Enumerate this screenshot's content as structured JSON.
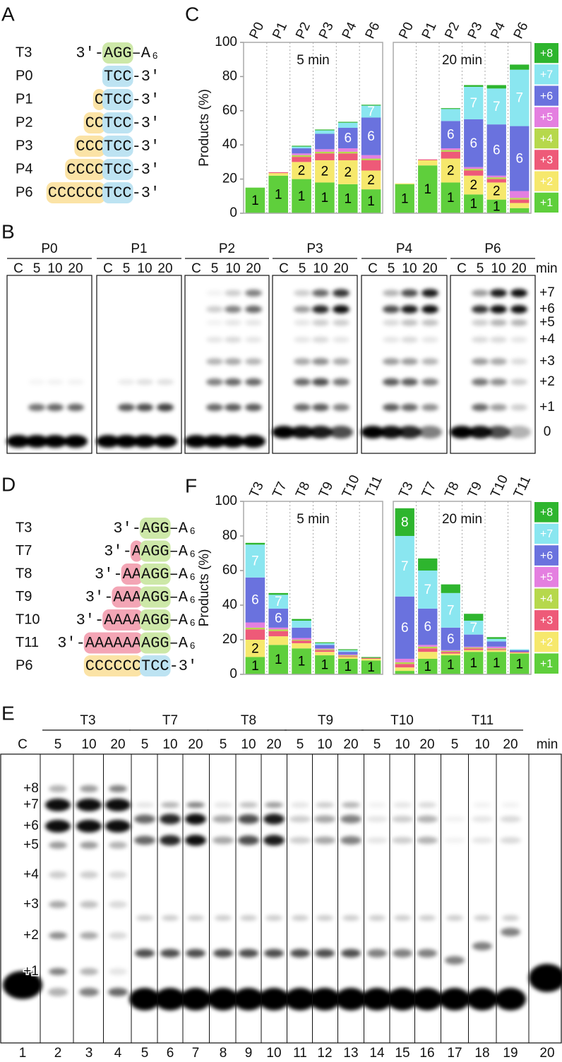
{
  "panel_labels": [
    "A",
    "B",
    "C",
    "D",
    "E",
    "F"
  ],
  "panel_a": [
    {
      "name": "T3",
      "left": [
        {
          "text": "3′-"
        }
      ],
      "right": [
        {
          "text": "AGG",
          "bg": "#cde8a8"
        },
        {
          "text": "–A₆"
        }
      ]
    },
    {
      "name": "P0",
      "left": [],
      "right": [
        {
          "text": "TCC",
          "bg": "#bde3f2"
        },
        {
          "text": "-3′"
        }
      ]
    },
    {
      "name": "P1",
      "left": [
        {
          "text": "C",
          "bg": "#fbe3a6"
        }
      ],
      "right": [
        {
          "text": "TCC",
          "bg": "#bde3f2"
        },
        {
          "text": "-3′"
        }
      ]
    },
    {
      "name": "P2",
      "left": [
        {
          "text": "CC",
          "bg": "#fbe3a6"
        }
      ],
      "right": [
        {
          "text": "TCC",
          "bg": "#bde3f2"
        },
        {
          "text": "-3′"
        }
      ]
    },
    {
      "name": "P3",
      "left": [
        {
          "text": "CCC",
          "bg": "#fbe3a6"
        }
      ],
      "right": [
        {
          "text": "TCC",
          "bg": "#bde3f2"
        },
        {
          "text": "-3′"
        }
      ]
    },
    {
      "name": "P4",
      "left": [
        {
          "text": "CCCC",
          "bg": "#fbe3a6"
        }
      ],
      "right": [
        {
          "text": "TCC",
          "bg": "#bde3f2"
        },
        {
          "text": "-3′"
        }
      ]
    },
    {
      "name": "P6",
      "left": [
        {
          "text": "CCCCCC",
          "bg": "#fbe3a6"
        }
      ],
      "right": [
        {
          "text": "TCC",
          "bg": "#bde3f2"
        },
        {
          "text": "-3′"
        }
      ]
    }
  ],
  "panel_d": [
    {
      "name": "T3",
      "left": [
        {
          "text": "3′-"
        }
      ],
      "right": [
        {
          "text": "AGG",
          "bg": "#cde8a8"
        },
        {
          "text": "–A₆"
        }
      ]
    },
    {
      "name": "T7",
      "left": [
        {
          "text": "3′-"
        },
        {
          "text": "A",
          "bg": "#f3a5b5"
        }
      ],
      "right": [
        {
          "text": "AGG",
          "bg": "#cde8a8"
        },
        {
          "text": "–A₆"
        }
      ]
    },
    {
      "name": "T8",
      "left": [
        {
          "text": "3′-"
        },
        {
          "text": "AA",
          "bg": "#f3a5b5"
        }
      ],
      "right": [
        {
          "text": "AGG",
          "bg": "#cde8a8"
        },
        {
          "text": "–A₆"
        }
      ]
    },
    {
      "name": "T9",
      "left": [
        {
          "text": "3′-"
        },
        {
          "text": "AAA",
          "bg": "#f3a5b5"
        }
      ],
      "right": [
        {
          "text": "AGG",
          "bg": "#cde8a8"
        },
        {
          "text": "–A₆"
        }
      ]
    },
    {
      "name": "T10",
      "left": [
        {
          "text": "3′-"
        },
        {
          "text": "AAAA",
          "bg": "#f3a5b5"
        }
      ],
      "right": [
        {
          "text": "AGG",
          "bg": "#cde8a8"
        },
        {
          "text": "–A₆"
        }
      ]
    },
    {
      "name": "T11",
      "left": [
        {
          "text": "3′-"
        },
        {
          "text": "AAAAAA",
          "bg": "#f3a5b5"
        }
      ],
      "right": [
        {
          "text": "AGG",
          "bg": "#cde8a8"
        },
        {
          "text": "–A₆"
        }
      ]
    },
    {
      "name": "P6",
      "left": [
        {
          "text": "CCCCCC",
          "bg": "#fbe3a6"
        }
      ],
      "right": [
        {
          "text": "TCC",
          "bg": "#bde3f2"
        },
        {
          "text": "-3′"
        }
      ]
    }
  ],
  "gel_b": {
    "headers": [
      "P0",
      "P1",
      "P2",
      "P3",
      "P4",
      "P6"
    ],
    "lanes": [
      "C",
      "5",
      "10",
      "20"
    ],
    "unit": "min",
    "band_labels": [
      "+7",
      "+6",
      "+5",
      "+4",
      "+3",
      "+2",
      "+1",
      "0"
    ]
  },
  "gel_e": {
    "c_lane": "C",
    "groups": [
      "T3",
      "T7",
      "T8",
      "T9",
      "T10",
      "T11"
    ],
    "lanes": [
      "5",
      "10",
      "20"
    ],
    "unit": "min",
    "band_labels": [
      "+8",
      "+7",
      "+6",
      "+5",
      "+4",
      "+3",
      "+2",
      "+1"
    ],
    "lane_numbers": [
      1,
      2,
      3,
      4,
      5,
      6,
      7,
      8,
      9,
      10,
      11,
      12,
      13,
      14,
      15,
      16,
      17,
      18,
      19,
      20
    ]
  },
  "chart_data": [
    {
      "type": "bar",
      "stacked": true,
      "ylabel": "Products (%)",
      "ylim": [
        0,
        100
      ],
      "yticks": [
        0,
        20,
        40,
        60,
        80,
        100
      ],
      "panels": [
        "5 min",
        "20 min"
      ],
      "categories": [
        "P0",
        "P1",
        "P2",
        "P3",
        "P4",
        "P6"
      ],
      "series": [
        {
          "name": "+1",
          "color": "#5fcf3c",
          "values": [
            [
              15,
              22,
              20,
              18,
              17,
              14
            ],
            [
              17,
              28,
              18,
              11,
              8,
              3
            ]
          ],
          "bar_text": [
            [
              "1",
              "1",
              "1",
              "1",
              "1",
              "1"
            ],
            [
              "1",
              "1",
              "1",
              "1",
              "1",
              null
            ]
          ]
        },
        {
          "name": "+2",
          "color": "#f6e86c",
          "values": [
            [
              0,
              1.5,
              10,
              13,
              14,
              11
            ],
            [
              0.5,
              3,
              14,
              11,
              10,
              3
            ]
          ],
          "bar_text": [
            [
              null,
              null,
              "2",
              "2",
              "2",
              "2"
            ],
            [
              null,
              null,
              "2",
              "2",
              "2",
              null
            ]
          ]
        },
        {
          "name": "+3",
          "color": "#ee5a78",
          "values": [
            [
              0,
              0.5,
              3,
              4,
              4,
              6
            ],
            [
              0,
              0.5,
              4,
              3,
              2,
              2
            ]
          ]
        },
        {
          "name": "+4",
          "color": "#b6d84c",
          "values": [
            [
              0,
              0,
              1,
              1,
              1,
              1
            ],
            [
              0,
              0,
              1,
              1,
              1,
              1
            ]
          ]
        },
        {
          "name": "+5",
          "color": "#e47fe0",
          "values": [
            [
              0,
              0,
              1,
              1.5,
              2,
              2
            ],
            [
              0,
              0,
              1,
              1,
              1,
              4
            ]
          ]
        },
        {
          "name": "+6",
          "color": "#6a72de",
          "values": [
            [
              0,
              0,
              3,
              9,
              12,
              22
            ],
            [
              0,
              0,
              16,
              28,
              30,
              38
            ]
          ],
          "bar_text": [
            [
              null,
              null,
              null,
              null,
              "6",
              "6"
            ],
            [
              null,
              null,
              "6",
              "6",
              "6",
              "6"
            ]
          ]
        },
        {
          "name": "+7",
          "color": "#8ae6f0",
          "values": [
            [
              0,
              0,
              1,
              2,
              3,
              7
            ],
            [
              0,
              0,
              7,
              19,
              21,
              33
            ]
          ],
          "bar_text": [
            [
              null,
              null,
              null,
              null,
              null,
              "7"
            ],
            [
              null,
              null,
              null,
              "7",
              "7",
              "7"
            ]
          ]
        },
        {
          "name": "+8",
          "color": "#2eb52e",
          "values": [
            [
              0,
              0,
              0.5,
              0.5,
              0.5,
              0.5
            ],
            [
              0,
              0,
              0.5,
              1,
              2,
              3
            ]
          ]
        }
      ]
    },
    {
      "type": "bar",
      "stacked": true,
      "ylabel": "Products (%)",
      "ylim": [
        0,
        100
      ],
      "yticks": [
        0,
        20,
        40,
        60,
        80,
        100
      ],
      "panels": [
        "5 min",
        "20 min"
      ],
      "categories": [
        "T3",
        "T7",
        "T8",
        "T9",
        "T10",
        "T11"
      ],
      "series": [
        {
          "name": "+1",
          "color": "#5fcf3c",
          "values": [
            [
              10,
              17,
              15,
              11,
              9,
              8
            ],
            [
              2,
              9,
              11,
              13,
              13,
              12
            ]
          ],
          "bar_text": [
            [
              "1",
              "1",
              "1",
              "1",
              "1",
              "1"
            ],
            [
              null,
              "1",
              "1",
              "1",
              "1",
              "1"
            ]
          ]
        },
        {
          "name": "+2",
          "color": "#f6e86c",
          "values": [
            [
              10,
              5,
              3,
              2,
              1,
              1
            ],
            [
              2,
              4,
              1,
              1,
              1,
              0.5
            ]
          ],
          "bar_text": [
            [
              "2",
              null,
              null,
              null,
              null,
              null
            ],
            [
              null,
              null,
              null,
              null,
              null,
              null
            ]
          ]
        },
        {
          "name": "+3",
          "color": "#ee5a78",
          "values": [
            [
              6,
              3,
              1.5,
              1,
              0.5,
              0.5
            ],
            [
              2,
              2,
              1,
              1,
              0.5,
              0.5
            ]
          ]
        },
        {
          "name": "+4",
          "color": "#b6d84c",
          "values": [
            [
              1,
              1,
              0.5,
              0.5,
              0.5,
              0
            ],
            [
              1,
              1,
              0.5,
              0.5,
              0.5,
              0
            ]
          ]
        },
        {
          "name": "+5",
          "color": "#e47fe0",
          "values": [
            [
              3,
              1,
              1,
              0.5,
              0.5,
              0
            ],
            [
              2,
              1,
              0.5,
              0.5,
              1,
              0
            ]
          ]
        },
        {
          "name": "+6",
          "color": "#6a72de",
          "values": [
            [
              26,
              11,
              6,
              2,
              1.5,
              0
            ],
            [
              36,
              21,
              13,
              7,
              3,
              1
            ]
          ],
          "bar_text": [
            [
              "6",
              "6",
              null,
              null,
              null,
              null
            ],
            [
              "6",
              "6",
              "6",
              null,
              null,
              null
            ]
          ]
        },
        {
          "name": "+7",
          "color": "#8ae6f0",
          "values": [
            [
              19,
              8,
              4,
              1,
              1,
              0
            ],
            [
              35,
              22,
              20,
              8,
              1.5,
              0.5
            ]
          ],
          "bar_text": [
            [
              "7",
              "7",
              null,
              null,
              null,
              null
            ],
            [
              "7",
              "7",
              "7",
              "7",
              null,
              null
            ]
          ]
        },
        {
          "name": "+8",
          "color": "#2eb52e",
          "values": [
            [
              1,
              1,
              1,
              0.5,
              0.5,
              0.5
            ],
            [
              16,
              7,
              5,
              4,
              1,
              0
            ]
          ],
          "bar_text": [
            [
              null,
              null,
              null,
              null,
              null,
              null
            ],
            [
              "8",
              null,
              null,
              null,
              null,
              null
            ]
          ]
        }
      ]
    }
  ]
}
